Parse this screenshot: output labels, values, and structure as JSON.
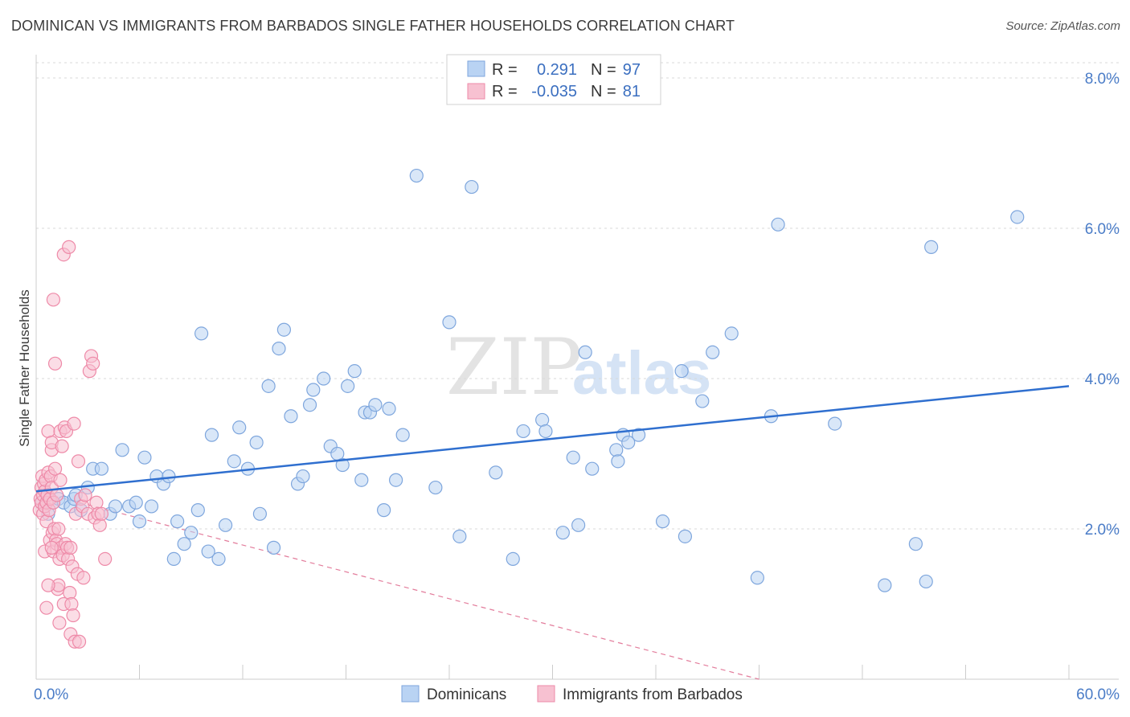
{
  "title": "DOMINICAN VS IMMIGRANTS FROM BARBADOS SINGLE FATHER HOUSEHOLDS CORRELATION CHART",
  "source": "Source: ZipAtlas.com",
  "watermark": {
    "zip": "ZIP",
    "atlas": "atlas"
  },
  "colors": {
    "blue_fill": "#b9d3f3",
    "blue_stroke": "#7ea6dd",
    "blue_line": "#2f6fcf",
    "pink_fill": "#f7c1d1",
    "pink_stroke": "#ee8aa8",
    "pink_line": "#e37d9c",
    "tick_text": "#4a7cc7",
    "grid": "#d8d8d8"
  },
  "legend": {
    "rows": [
      {
        "r_label": "R =",
        "r_value": "0.291",
        "n_label": "N =",
        "n_value": "97"
      },
      {
        "r_label": "R =",
        "r_value": "-0.035",
        "n_label": "N =",
        "n_value": "81"
      }
    ]
  },
  "chart_data": {
    "type": "scatter",
    "title": "DOMINICAN VS IMMIGRANTS FROM BARBADOS SINGLE FATHER HOUSEHOLDS CORRELATION CHART",
    "xlabel": "",
    "ylabel": "Single Father Households",
    "xlim": [
      0,
      60
    ],
    "ylim": [
      0,
      8.5
    ],
    "x_tick_labels": [
      {
        "value": 0,
        "label": "0.0%"
      },
      {
        "value": 60,
        "label": "60.0%"
      }
    ],
    "y_ticks": [
      {
        "value": 2,
        "label": "2.0%"
      },
      {
        "value": 4,
        "label": "4.0%"
      },
      {
        "value": 6,
        "label": "6.0%"
      },
      {
        "value": 8,
        "label": "8.0%"
      }
    ],
    "series": [
      {
        "name": "Dominicans",
        "r": 0.291,
        "n": 97,
        "trend": {
          "x1": 0,
          "y1": 2.5,
          "x2": 60,
          "y2": 3.9,
          "style": "solid"
        },
        "points": [
          [
            0.5,
            2.3
          ],
          [
            0.7,
            2.2
          ],
          [
            1.0,
            2.35
          ],
          [
            1.3,
            2.4
          ],
          [
            1.6,
            2.35
          ],
          [
            2.0,
            2.3
          ],
          [
            2.2,
            2.4
          ],
          [
            2.3,
            2.45
          ],
          [
            2.6,
            2.25
          ],
          [
            3.0,
            2.55
          ],
          [
            3.3,
            2.8
          ],
          [
            3.8,
            2.8
          ],
          [
            4.3,
            2.2
          ],
          [
            4.6,
            2.3
          ],
          [
            5.0,
            3.05
          ],
          [
            5.4,
            2.3
          ],
          [
            5.8,
            2.35
          ],
          [
            6.0,
            2.1
          ],
          [
            6.3,
            2.95
          ],
          [
            6.7,
            2.3
          ],
          [
            7.0,
            2.7
          ],
          [
            7.4,
            2.6
          ],
          [
            7.7,
            2.7
          ],
          [
            8.0,
            1.6
          ],
          [
            8.2,
            2.1
          ],
          [
            8.6,
            1.8
          ],
          [
            9.0,
            1.95
          ],
          [
            9.4,
            2.25
          ],
          [
            9.6,
            4.6
          ],
          [
            10.0,
            1.7
          ],
          [
            10.2,
            3.25
          ],
          [
            10.6,
            1.6
          ],
          [
            11.0,
            2.05
          ],
          [
            11.5,
            2.9
          ],
          [
            11.8,
            3.35
          ],
          [
            12.3,
            2.8
          ],
          [
            12.8,
            3.15
          ],
          [
            13.0,
            2.2
          ],
          [
            13.5,
            3.9
          ],
          [
            13.8,
            1.75
          ],
          [
            14.1,
            4.4
          ],
          [
            14.4,
            4.65
          ],
          [
            14.8,
            3.5
          ],
          [
            15.2,
            2.6
          ],
          [
            15.5,
            2.7
          ],
          [
            15.9,
            3.65
          ],
          [
            16.1,
            3.85
          ],
          [
            16.7,
            4.0
          ],
          [
            17.1,
            3.1
          ],
          [
            17.5,
            3.0
          ],
          [
            17.8,
            2.85
          ],
          [
            18.1,
            3.9
          ],
          [
            18.5,
            4.1
          ],
          [
            18.9,
            2.65
          ],
          [
            19.1,
            3.55
          ],
          [
            19.4,
            3.55
          ],
          [
            19.7,
            3.65
          ],
          [
            20.2,
            2.25
          ],
          [
            20.5,
            3.6
          ],
          [
            20.9,
            2.65
          ],
          [
            21.3,
            3.25
          ],
          [
            22.1,
            6.7
          ],
          [
            23.2,
            2.55
          ],
          [
            24.0,
            4.75
          ],
          [
            24.6,
            1.9
          ],
          [
            25.3,
            6.55
          ],
          [
            26.7,
            2.75
          ],
          [
            27.7,
            1.6
          ],
          [
            28.3,
            3.3
          ],
          [
            29.4,
            3.45
          ],
          [
            29.6,
            3.3
          ],
          [
            30.6,
            1.95
          ],
          [
            31.2,
            2.95
          ],
          [
            31.5,
            2.05
          ],
          [
            31.9,
            4.35
          ],
          [
            32.3,
            2.8
          ],
          [
            33.7,
            3.05
          ],
          [
            33.8,
            2.9
          ],
          [
            34.1,
            3.25
          ],
          [
            34.4,
            3.15
          ],
          [
            35.0,
            3.25
          ],
          [
            36.4,
            2.1
          ],
          [
            37.5,
            4.1
          ],
          [
            37.7,
            1.9
          ],
          [
            38.7,
            3.7
          ],
          [
            39.3,
            4.35
          ],
          [
            40.4,
            4.6
          ],
          [
            41.9,
            1.35
          ],
          [
            42.7,
            3.5
          ],
          [
            43.1,
            6.05
          ],
          [
            46.4,
            3.4
          ],
          [
            49.3,
            1.25
          ],
          [
            51.1,
            1.8
          ],
          [
            51.7,
            1.3
          ],
          [
            52.0,
            5.75
          ],
          [
            57.0,
            6.15
          ],
          [
            0.3,
            2.35
          ]
        ]
      },
      {
        "name": "Immigrants from Barbados",
        "r": -0.035,
        "n": 81,
        "trend": {
          "x1": 0,
          "y1": 2.5,
          "x2": 42,
          "y2": 0.0,
          "style": "dashed"
        },
        "points": [
          [
            0.2,
            2.25
          ],
          [
            0.25,
            2.4
          ],
          [
            0.3,
            2.55
          ],
          [
            0.3,
            2.35
          ],
          [
            0.35,
            2.7
          ],
          [
            0.4,
            2.45
          ],
          [
            0.4,
            2.2
          ],
          [
            0.45,
            2.6
          ],
          [
            0.5,
            2.3
          ],
          [
            0.5,
            2.5
          ],
          [
            0.5,
            1.7
          ],
          [
            0.55,
            2.65
          ],
          [
            0.6,
            2.35
          ],
          [
            0.6,
            2.1
          ],
          [
            0.65,
            2.45
          ],
          [
            0.7,
            2.75
          ],
          [
            0.7,
            3.3
          ],
          [
            0.75,
            2.25
          ],
          [
            0.8,
            2.4
          ],
          [
            0.8,
            1.85
          ],
          [
            0.85,
            2.7
          ],
          [
            0.9,
            3.05
          ],
          [
            0.9,
            3.15
          ],
          [
            0.9,
            2.55
          ],
          [
            0.95,
            1.95
          ],
          [
            1.0,
            2.35
          ],
          [
            1.0,
            1.7
          ],
          [
            1.0,
            5.05
          ],
          [
            1.05,
            2.0
          ],
          [
            1.1,
            4.2
          ],
          [
            1.1,
            2.8
          ],
          [
            1.15,
            1.85
          ],
          [
            1.2,
            2.45
          ],
          [
            1.2,
            1.8
          ],
          [
            1.25,
            1.2
          ],
          [
            1.3,
            1.25
          ],
          [
            1.35,
            1.6
          ],
          [
            1.4,
            3.3
          ],
          [
            1.4,
            2.65
          ],
          [
            1.45,
            1.75
          ],
          [
            1.5,
            3.1
          ],
          [
            1.55,
            1.65
          ],
          [
            1.6,
            5.65
          ],
          [
            1.6,
            1.0
          ],
          [
            1.65,
            3.35
          ],
          [
            1.7,
            1.8
          ],
          [
            1.75,
            3.3
          ],
          [
            1.8,
            1.75
          ],
          [
            1.85,
            1.6
          ],
          [
            1.9,
            5.75
          ],
          [
            1.95,
            1.15
          ],
          [
            2.0,
            0.6
          ],
          [
            2.05,
            1.0
          ],
          [
            2.1,
            1.5
          ],
          [
            2.15,
            0.85
          ],
          [
            2.2,
            3.4
          ],
          [
            2.25,
            0.5
          ],
          [
            2.3,
            2.2
          ],
          [
            2.4,
            1.4
          ],
          [
            2.45,
            2.9
          ],
          [
            2.5,
            0.5
          ],
          [
            2.6,
            2.4
          ],
          [
            2.7,
            2.3
          ],
          [
            2.75,
            1.35
          ],
          [
            2.85,
            2.45
          ],
          [
            3.0,
            2.2
          ],
          [
            3.1,
            4.1
          ],
          [
            3.2,
            4.3
          ],
          [
            3.3,
            4.2
          ],
          [
            3.4,
            2.15
          ],
          [
            3.5,
            2.35
          ],
          [
            3.6,
            2.2
          ],
          [
            3.7,
            2.05
          ],
          [
            3.8,
            2.2
          ],
          [
            4.0,
            1.6
          ],
          [
            0.9,
            1.75
          ],
          [
            0.7,
            1.25
          ],
          [
            0.6,
            0.95
          ],
          [
            1.35,
            0.75
          ],
          [
            2.0,
            1.75
          ],
          [
            1.3,
            2.0
          ]
        ]
      }
    ]
  },
  "bottom_legend": [
    {
      "label": "Dominicans"
    },
    {
      "label": "Immigrants from Barbados"
    }
  ]
}
